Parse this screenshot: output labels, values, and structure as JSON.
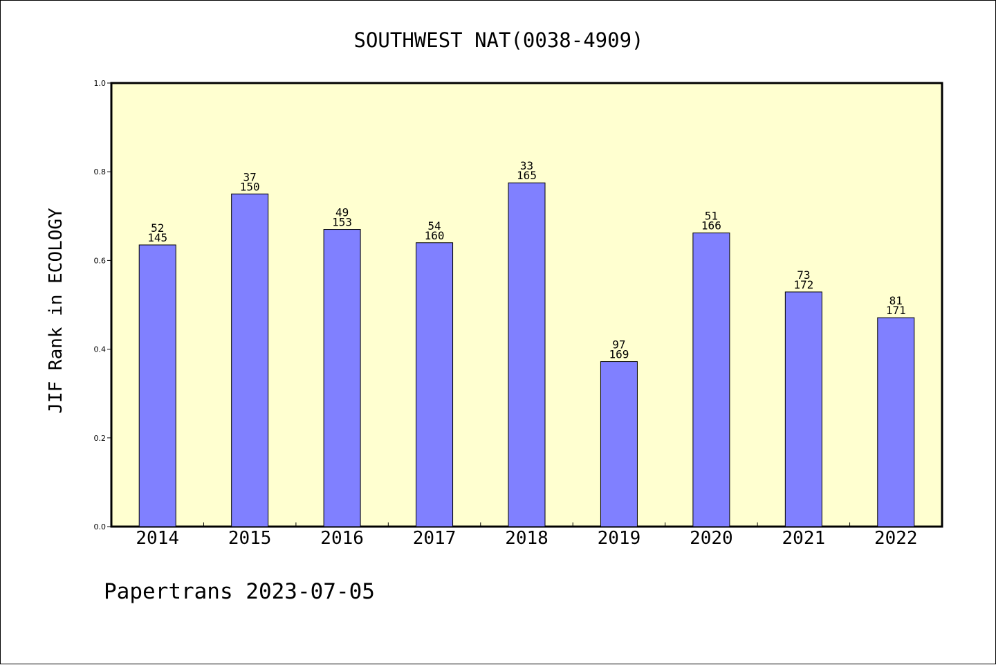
{
  "chart_data": {
    "type": "bar",
    "title": "SOUTHWEST NAT(0038-4909)",
    "ylabel": "JIF Rank in ECOLOGY",
    "xlabel": "",
    "ylim": [
      0,
      1.0
    ],
    "yticks": [
      "0.0",
      "0.2",
      "0.4",
      "0.6",
      "0.8",
      "1.0"
    ],
    "categories": [
      "2014",
      "2015",
      "2016",
      "2017",
      "2018",
      "2019",
      "2020",
      "2021",
      "2022"
    ],
    "values": [
      0.635,
      0.75,
      0.67,
      0.64,
      0.775,
      0.372,
      0.662,
      0.529,
      0.471
    ],
    "rank": [
      "52",
      "37",
      "49",
      "54",
      "33",
      "97",
      "51",
      "73",
      "81"
    ],
    "total": [
      "145",
      "150",
      "153",
      "160",
      "165",
      "169",
      "166",
      "172",
      "171"
    ],
    "grid": false,
    "legend": "none"
  },
  "footer": "Papertrans 2023-07-05",
  "colors": {
    "plot_background": "#ffffd0",
    "bar_fill": "#8080ff",
    "bar_stroke": "#000000"
  }
}
